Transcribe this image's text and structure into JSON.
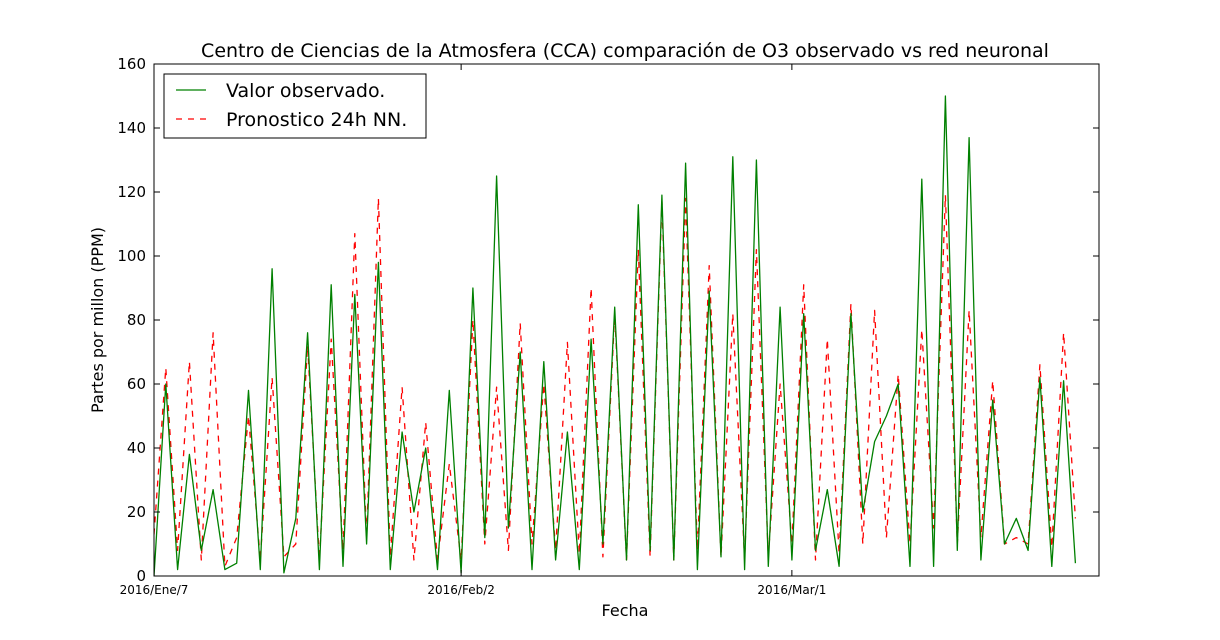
{
  "chart_data": {
    "type": "line",
    "title": "Centro de Ciencias de la Atmosfera (CCA) comparación de O3 observado vs red neuronal",
    "xlabel": "Fecha",
    "ylabel": "Partes por millon (PPM)",
    "ylim": [
      0,
      160
    ],
    "yticks": [
      0,
      20,
      40,
      60,
      80,
      100,
      120,
      140,
      160
    ],
    "x_unit": "date",
    "xlim": [
      "2016-01-07",
      "2016-03-27"
    ],
    "xticks": [
      {
        "date": "2016-01-07",
        "label": "2016/Ene/7"
      },
      {
        "date": "2016-02-02",
        "label": "2016/Feb/2"
      },
      {
        "date": "2016-03-01",
        "label": "2016/Mar/1"
      }
    ],
    "grid": false,
    "legend_position": "top-left",
    "series": [
      {
        "name": "Valor observado.",
        "color": "#008000",
        "style": "solid",
        "points": [
          [
            "2016-01-07",
            0
          ],
          [
            "2016-01-08",
            60
          ],
          [
            "2016-01-09",
            2
          ],
          [
            "2016-01-10",
            38
          ],
          [
            "2016-01-11",
            8
          ],
          [
            "2016-01-12",
            27
          ],
          [
            "2016-01-13",
            2
          ],
          [
            "2016-01-14",
            4
          ],
          [
            "2016-01-15",
            58
          ],
          [
            "2016-01-16",
            2
          ],
          [
            "2016-01-17",
            96
          ],
          [
            "2016-01-18",
            1
          ],
          [
            "2016-01-19",
            18
          ],
          [
            "2016-01-20",
            76
          ],
          [
            "2016-01-21",
            2
          ],
          [
            "2016-01-22",
            91
          ],
          [
            "2016-01-23",
            3
          ],
          [
            "2016-01-24",
            88
          ],
          [
            "2016-01-25",
            10
          ],
          [
            "2016-01-26",
            98
          ],
          [
            "2016-01-27",
            2
          ],
          [
            "2016-01-28",
            45
          ],
          [
            "2016-01-29",
            20
          ],
          [
            "2016-01-30",
            40
          ],
          [
            "2016-01-31",
            2
          ],
          [
            "2016-02-01",
            58
          ],
          [
            "2016-02-02",
            1
          ],
          [
            "2016-02-03",
            90
          ],
          [
            "2016-02-04",
            12
          ],
          [
            "2016-02-05",
            125
          ],
          [
            "2016-02-06",
            15
          ],
          [
            "2016-02-07",
            70
          ],
          [
            "2016-02-08",
            2
          ],
          [
            "2016-02-09",
            67
          ],
          [
            "2016-02-10",
            5
          ],
          [
            "2016-02-11",
            45
          ],
          [
            "2016-02-12",
            2
          ],
          [
            "2016-02-13",
            74
          ],
          [
            "2016-02-14",
            10
          ],
          [
            "2016-02-15",
            84
          ],
          [
            "2016-02-16",
            5
          ],
          [
            "2016-02-17",
            116
          ],
          [
            "2016-02-18",
            8
          ],
          [
            "2016-02-19",
            119
          ],
          [
            "2016-02-20",
            5
          ],
          [
            "2016-02-21",
            129
          ],
          [
            "2016-02-22",
            2
          ],
          [
            "2016-02-23",
            89
          ],
          [
            "2016-02-24",
            6
          ],
          [
            "2016-02-25",
            131
          ],
          [
            "2016-02-26",
            2
          ],
          [
            "2016-02-27",
            130
          ],
          [
            "2016-02-28",
            3
          ],
          [
            "2016-02-29",
            84
          ],
          [
            "2016-03-01",
            5
          ],
          [
            "2016-03-02",
            82
          ],
          [
            "2016-03-03",
            8
          ],
          [
            "2016-03-04",
            27
          ],
          [
            "2016-03-05",
            3
          ],
          [
            "2016-03-06",
            82
          ],
          [
            "2016-03-07",
            20
          ],
          [
            "2016-03-08",
            42
          ],
          [
            "2016-03-09",
            50
          ],
          [
            "2016-03-10",
            60
          ],
          [
            "2016-03-11",
            3
          ],
          [
            "2016-03-12",
            124
          ],
          [
            "2016-03-13",
            3
          ],
          [
            "2016-03-14",
            150
          ],
          [
            "2016-03-15",
            8
          ],
          [
            "2016-03-16",
            137
          ],
          [
            "2016-03-17",
            5
          ],
          [
            "2016-03-18",
            55
          ],
          [
            "2016-03-19",
            10
          ],
          [
            "2016-03-20",
            18
          ],
          [
            "2016-03-21",
            8
          ],
          [
            "2016-03-22",
            62
          ],
          [
            "2016-03-23",
            3
          ],
          [
            "2016-03-24",
            61
          ],
          [
            "2016-03-25",
            4
          ]
        ]
      },
      {
        "name": "Pronostico 24h NN.",
        "color": "#ff0000",
        "style": "dashed",
        "points": [
          [
            "2016-01-07",
            13
          ],
          [
            "2016-01-08",
            65
          ],
          [
            "2016-01-09",
            8
          ],
          [
            "2016-01-10",
            67
          ],
          [
            "2016-01-11",
            5
          ],
          [
            "2016-01-12",
            76
          ],
          [
            "2016-01-13",
            3
          ],
          [
            "2016-01-14",
            12
          ],
          [
            "2016-01-15",
            50
          ],
          [
            "2016-01-16",
            5
          ],
          [
            "2016-01-17",
            62
          ],
          [
            "2016-01-18",
            6
          ],
          [
            "2016-01-19",
            10
          ],
          [
            "2016-01-20",
            72
          ],
          [
            "2016-01-21",
            5
          ],
          [
            "2016-01-22",
            74
          ],
          [
            "2016-01-23",
            8
          ],
          [
            "2016-01-24",
            107
          ],
          [
            "2016-01-25",
            12
          ],
          [
            "2016-01-26",
            118
          ],
          [
            "2016-01-27",
            6
          ],
          [
            "2016-01-28",
            59
          ],
          [
            "2016-01-29",
            5
          ],
          [
            "2016-01-30",
            48
          ],
          [
            "2016-01-31",
            5
          ],
          [
            "2016-02-01",
            35
          ],
          [
            "2016-02-02",
            5
          ],
          [
            "2016-02-03",
            80
          ],
          [
            "2016-02-04",
            10
          ],
          [
            "2016-02-05",
            59
          ],
          [
            "2016-02-06",
            8
          ],
          [
            "2016-02-07",
            79
          ],
          [
            "2016-02-08",
            10
          ],
          [
            "2016-02-09",
            60
          ],
          [
            "2016-02-10",
            8
          ],
          [
            "2016-02-11",
            73
          ],
          [
            "2016-02-12",
            7
          ],
          [
            "2016-02-13",
            90
          ],
          [
            "2016-02-14",
            6
          ],
          [
            "2016-02-15",
            82
          ],
          [
            "2016-02-16",
            5
          ],
          [
            "2016-02-17",
            102
          ],
          [
            "2016-02-18",
            6
          ],
          [
            "2016-02-19",
            117
          ],
          [
            "2016-02-20",
            5
          ],
          [
            "2016-02-21",
            118
          ],
          [
            "2016-02-22",
            8
          ],
          [
            "2016-02-23",
            97
          ],
          [
            "2016-02-24",
            6
          ],
          [
            "2016-02-25",
            82
          ],
          [
            "2016-02-26",
            5
          ],
          [
            "2016-02-27",
            102
          ],
          [
            "2016-02-28",
            6
          ],
          [
            "2016-02-29",
            60
          ],
          [
            "2016-03-01",
            10
          ],
          [
            "2016-03-02",
            91
          ],
          [
            "2016-03-03",
            5
          ],
          [
            "2016-03-04",
            74
          ],
          [
            "2016-03-05",
            7
          ],
          [
            "2016-03-06",
            85
          ],
          [
            "2016-03-07",
            10
          ],
          [
            "2016-03-08",
            83
          ],
          [
            "2016-03-09",
            12
          ],
          [
            "2016-03-10",
            63
          ],
          [
            "2016-03-11",
            10
          ],
          [
            "2016-03-12",
            77
          ],
          [
            "2016-03-13",
            15
          ],
          [
            "2016-03-14",
            119
          ],
          [
            "2016-03-15",
            10
          ],
          [
            "2016-03-16",
            83
          ],
          [
            "2016-03-17",
            12
          ],
          [
            "2016-03-18",
            61
          ],
          [
            "2016-03-19",
            10
          ],
          [
            "2016-03-20",
            12
          ],
          [
            "2016-03-21",
            10
          ],
          [
            "2016-03-22",
            66
          ],
          [
            "2016-03-23",
            9
          ],
          [
            "2016-03-24",
            76
          ],
          [
            "2016-03-25",
            18
          ]
        ]
      }
    ]
  }
}
